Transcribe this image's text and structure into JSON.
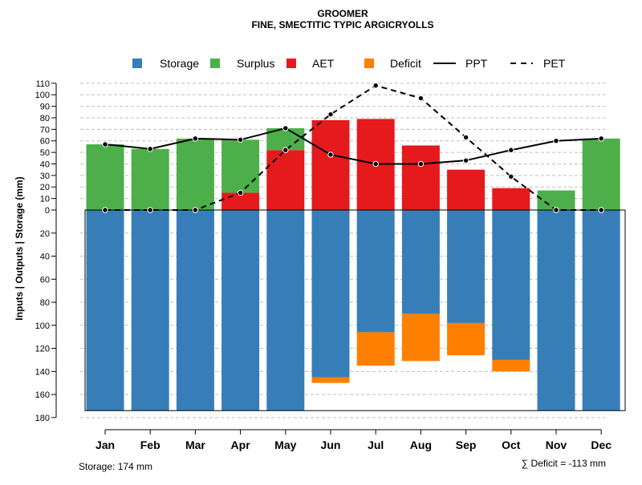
{
  "chart_data": {
    "type": "bar",
    "title": "GROOMER",
    "subtitle": "FINE, SMECTITIC TYPIC ARGICRYOLLS",
    "ylabel": "Inputs | Outputs | Storage    (mm)",
    "categories": [
      "Jan",
      "Feb",
      "Mar",
      "Apr",
      "May",
      "Jun",
      "Jul",
      "Aug",
      "Sep",
      "Oct",
      "Nov",
      "Dec"
    ],
    "ylim_upper": [
      0,
      110
    ],
    "ylim_lower": [
      0,
      180
    ],
    "y_ticks_upper": [
      "0",
      "10",
      "20",
      "30",
      "40",
      "50",
      "60",
      "70",
      "80",
      "90",
      "100",
      "110"
    ],
    "y_ticks_lower": [
      "20",
      "40",
      "60",
      "80",
      "100",
      "120",
      "140",
      "160",
      "180"
    ],
    "legend": {
      "placement": "top",
      "items": [
        {
          "label": "Storage",
          "kind": "square",
          "color": "#377eb8"
        },
        {
          "label": "Surplus",
          "kind": "square",
          "color": "#4daf4a"
        },
        {
          "label": "AET",
          "kind": "square",
          "color": "#e41a1c"
        },
        {
          "label": "Deficit",
          "kind": "square",
          "color": "#ff7f00"
        },
        {
          "label": "PPT",
          "kind": "solid-line",
          "color": "#000000"
        },
        {
          "label": "PET",
          "kind": "dashed-line",
          "color": "#000000"
        }
      ]
    },
    "series": [
      {
        "name": "Surplus",
        "color": "#4daf4a",
        "values": [
          57,
          53,
          62,
          46,
          19,
          0,
          0,
          0,
          0,
          0,
          17,
          62
        ]
      },
      {
        "name": "AET",
        "color": "#e41a1c",
        "values": [
          0,
          0,
          0,
          15,
          52,
          78,
          79,
          56,
          35,
          19,
          0,
          0
        ]
      },
      {
        "name": "Storage",
        "color": "#377eb8",
        "values": [
          174,
          174,
          174,
          174,
          174,
          145,
          106,
          90,
          98,
          130,
          174,
          174
        ]
      },
      {
        "name": "Deficit",
        "color": "#ff7f00",
        "values": [
          0,
          0,
          0,
          0,
          0,
          5,
          29,
          41,
          28,
          10,
          0,
          0
        ]
      },
      {
        "name": "PPT",
        "color": "#000000",
        "values": [
          57,
          53,
          62,
          61,
          71,
          48,
          40,
          40,
          43,
          52,
          60,
          62
        ]
      },
      {
        "name": "PET",
        "color": "#000000",
        "values": [
          0,
          0,
          0,
          15,
          52,
          83,
          108,
          97,
          63,
          29,
          0,
          0
        ]
      }
    ],
    "storage_capacity": 174,
    "footer_storage": "Storage: 174 mm",
    "footer_deficit": "∑ Deficit = -113 mm"
  }
}
